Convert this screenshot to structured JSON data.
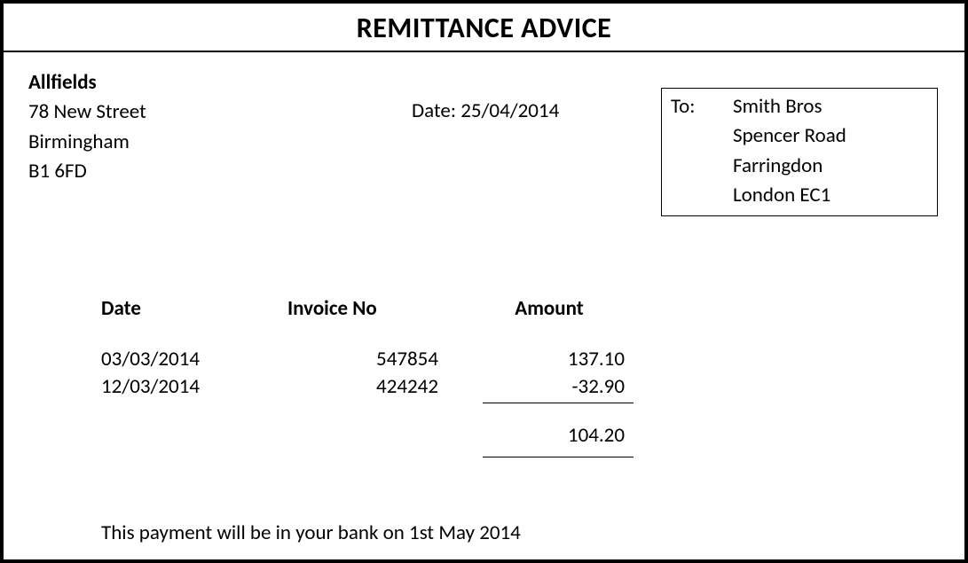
{
  "title": "REMITTANCE ADVICE",
  "from": {
    "name": "Allfields",
    "line1": "78 New Street",
    "line2": "Birmingham",
    "line3": "B1 6FD"
  },
  "date": {
    "label": "Date:",
    "value": "25/04/2014"
  },
  "to": {
    "label": "To:",
    "line1": "Smith Bros",
    "line2": "Spencer Road",
    "line3": "Farringdon",
    "line4": "London EC1"
  },
  "table": {
    "headers": {
      "date": "Date",
      "invoice": "Invoice No",
      "amount": "Amount"
    },
    "rows": [
      {
        "date": "03/03/2014",
        "invoice": "547854",
        "amount": "137.10"
      },
      {
        "date": "12/03/2014",
        "invoice": "424242",
        "amount": "-32.90"
      }
    ],
    "total": "104.20"
  },
  "footer": "This payment will be in your bank on 1st May 2014",
  "style": {
    "border_color": "#000000",
    "background_color": "#ffffff",
    "title_fontsize": 32,
    "body_fontsize": 23,
    "font_family": "Calibri"
  }
}
